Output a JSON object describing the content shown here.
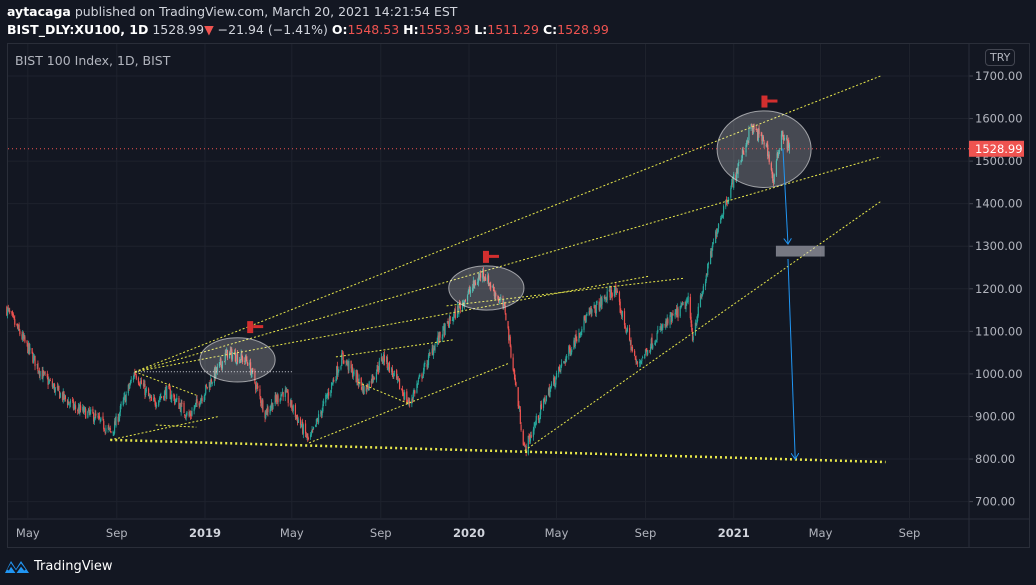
{
  "header": {
    "author": "aytacaga",
    "published": "published on TradingView.com, March 20, 2021 14:21:54 EST",
    "symbol": "BIST_DLY:XU100, 1D",
    "last": "1528.99",
    "change": "−21.94 (−1.41%)",
    "o_label": "O:",
    "o": "1548.53",
    "h_label": "H:",
    "h": "1553.93",
    "l_label": "L:",
    "l": "1511.29",
    "c_label": "C:",
    "c": "1528.99"
  },
  "legend": "BIST 100 Index, 1D, BIST",
  "currency": "TRY",
  "footer": {
    "brand": "TradingView"
  },
  "colors": {
    "up": "#26a69a",
    "down": "#ef5350",
    "trend": "#e8e84a",
    "arrow": "#2196f3",
    "bg": "#131722"
  },
  "chart_data": {
    "type": "candlestick",
    "title": "BIST 100 Index, 1D, BIST",
    "ylim": [
      640,
      1760
    ],
    "yticks": [
      700,
      800,
      900,
      1000,
      1100,
      1200,
      1300,
      1400,
      1500,
      1600,
      1700
    ],
    "ytick_labels": [
      "700.00",
      "800.00",
      "900.00",
      "1000.00",
      "1100.00",
      "1200.00",
      "1300.00",
      "1400.00",
      "1500.00",
      "1600.00",
      "1700.00"
    ],
    "xticks": [
      {
        "d": "2018-05-01",
        "l": "May"
      },
      {
        "d": "2018-09-01",
        "l": "Sep"
      },
      {
        "d": "2019-01-01",
        "l": "2019",
        "bold": true
      },
      {
        "d": "2019-05-01",
        "l": "May"
      },
      {
        "d": "2019-09-01",
        "l": "Sep"
      },
      {
        "d": "2020-01-01",
        "l": "2020",
        "bold": true
      },
      {
        "d": "2020-05-01",
        "l": "May"
      },
      {
        "d": "2020-09-01",
        "l": "Sep"
      },
      {
        "d": "2021-01-01",
        "l": "2021",
        "bold": true
      },
      {
        "d": "2021-05-01",
        "l": "May"
      },
      {
        "d": "2021-09-01",
        "l": "Sep"
      }
    ],
    "last_price": 1528.99,
    "last_price_label": "1528.99",
    "path": [
      [
        "2018-04-01",
        1155
      ],
      [
        "2018-04-25",
        1080
      ],
      [
        "2018-05-20",
        1000
      ],
      [
        "2018-06-10",
        960
      ],
      [
        "2018-07-05",
        920
      ],
      [
        "2018-08-01",
        900
      ],
      [
        "2018-08-25",
        860
      ],
      [
        "2018-09-26",
        1005
      ],
      [
        "2018-10-20",
        930
      ],
      [
        "2018-11-10",
        960
      ],
      [
        "2018-12-10",
        900
      ],
      [
        "2019-01-01",
        960
      ],
      [
        "2019-02-01",
        1050
      ],
      [
        "2019-03-01",
        1030
      ],
      [
        "2019-03-25",
        910
      ],
      [
        "2019-04-20",
        960
      ],
      [
        "2019-05-25",
        840
      ],
      [
        "2019-07-10",
        1040
      ],
      [
        "2019-08-10",
        960
      ],
      [
        "2019-09-05",
        1040
      ],
      [
        "2019-10-10",
        930
      ],
      [
        "2019-11-15",
        1070
      ],
      [
        "2019-12-20",
        1160
      ],
      [
        "2020-01-20",
        1240
      ],
      [
        "2020-02-20",
        1150
      ],
      [
        "2020-03-18",
        820
      ],
      [
        "2020-04-15",
        940
      ],
      [
        "2020-06-10",
        1130
      ],
      [
        "2020-07-20",
        1200
      ],
      [
        "2020-08-20",
        1020
      ],
      [
        "2020-09-20",
        1100
      ],
      [
        "2020-10-30",
        1170
      ],
      [
        "2020-11-05",
        1090
      ],
      [
        "2020-12-10",
        1350
      ],
      [
        "2021-01-10",
        1500
      ],
      [
        "2021-01-25",
        1580
      ],
      [
        "2021-02-15",
        1540
      ],
      [
        "2021-02-25",
        1450
      ],
      [
        "2021-03-08",
        1570
      ],
      [
        "2021-03-19",
        1529
      ]
    ],
    "annotations": {
      "trendlines": [
        {
          "a": [
            "2018-08-23",
            845
          ],
          "b": [
            "2021-07-30",
            793
          ],
          "thick": true
        },
        {
          "a": [
            "2018-09-26",
            1005
          ],
          "b": [
            "2021-07-23",
            1700
          ]
        },
        {
          "a": [
            "2018-09-26",
            1005
          ],
          "b": [
            "2021-07-23",
            1510
          ]
        },
        {
          "a": [
            "2018-09-26",
            1005
          ],
          "b": [
            "2020-09-07",
            1230
          ]
        },
        {
          "a": [
            "2018-08-23",
            845
          ],
          "b": [
            "2019-01-20",
            900
          ]
        },
        {
          "a": [
            "2018-09-26",
            1005
          ],
          "b": [
            "2018-12-20",
            950
          ]
        },
        {
          "a": [
            "2018-10-25",
            880
          ],
          "b": [
            "2018-12-20",
            875
          ]
        },
        {
          "a": [
            "2019-05-25",
            838
          ],
          "b": [
            "2020-02-25",
            1025
          ]
        },
        {
          "a": [
            "2020-03-18",
            820
          ],
          "b": [
            "2021-07-23",
            1405
          ]
        },
        {
          "a": [
            "2019-07-01",
            1040
          ],
          "b": [
            "2019-12-10",
            1080
          ]
        },
        {
          "a": [
            "2019-08-01",
            980
          ],
          "b": [
            "2019-10-10",
            930
          ]
        },
        {
          "a": [
            "2019-12-01",
            1160
          ],
          "b": [
            "2020-10-25",
            1225
          ]
        }
      ],
      "hline": {
        "a": [
          "2018-09-26",
          1005
        ],
        "b": [
          "2019-05-01",
          1005
        ]
      },
      "ellipses": [
        {
          "c": [
            "2019-02-15",
            1033
          ],
          "rx_days": 52,
          "ry": 52
        },
        {
          "c": [
            "2020-01-25",
            1202
          ],
          "rx_days": 52,
          "ry": 52
        },
        {
          "c": [
            "2021-02-12",
            1528
          ],
          "rx_days": 65,
          "ry": 90
        }
      ],
      "markers": [
        [
          "2019-03-10",
          1110
        ],
        [
          "2020-01-30",
          1275
        ],
        [
          "2021-02-18",
          1640
        ]
      ],
      "arrows": [
        {
          "a": [
            "2021-03-10",
            1530
          ],
          "b": [
            "2021-03-17",
            1305
          ]
        },
        {
          "a": [
            "2021-03-17",
            1270
          ],
          "b": [
            "2021-03-27",
            800
          ]
        }
      ],
      "box": {
        "a": [
          "2021-03-01",
          1300
        ],
        "b": [
          "2021-05-06",
          1277
        ]
      }
    }
  }
}
